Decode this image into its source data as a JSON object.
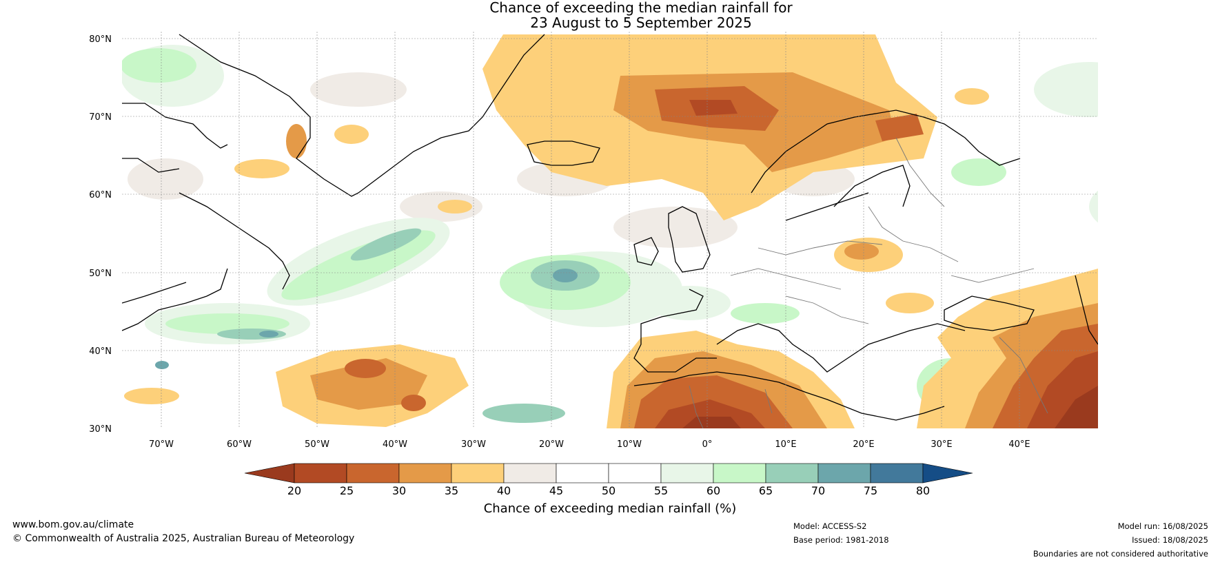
{
  "title": {
    "line1": "Chance of exceeding the median rainfall for",
    "line2": "23 August to 5 September 2025"
  },
  "map": {
    "region": "North Atlantic and Europe",
    "lat_labels": [
      "80°N",
      "70°N",
      "60°N",
      "50°N",
      "40°N",
      "30°N"
    ],
    "lon_labels": [
      "70°W",
      "60°W",
      "50°W",
      "40°W",
      "30°W",
      "20°W",
      "10°W",
      "0°",
      "10°E",
      "20°E",
      "30°E",
      "40°E"
    ],
    "lat_range": [
      30,
      81
    ],
    "lon_range": [
      -75,
      50
    ],
    "gridlines": true
  },
  "colorbar": {
    "label": "Chance of exceeding median rainfall (%)",
    "ticks": [
      "20",
      "25",
      "30",
      "35",
      "40",
      "45",
      "50",
      "55",
      "60",
      "65",
      "70",
      "75",
      "80"
    ],
    "colors": [
      "#9a3a1e",
      "#b24a24",
      "#c9662e",
      "#e49a48",
      "#fdd07a",
      "#f0ebe6",
      "#ffffff",
      "#ffffff",
      "#e8f6e8",
      "#c8f7c8",
      "#98cfb8",
      "#6ca6ab",
      "#42799b",
      "#154d86"
    ],
    "extend": "both"
  },
  "footer": {
    "website": "www.bom.gov.au/climate",
    "copyright": "© Commonwealth of Australia 2025, Australian Bureau of Meteorology",
    "model": "Model: ACCESS-S2",
    "base_period": "Base period: 1981-2018",
    "model_run": "Model run: 16/08/2025",
    "issued": "Issued: 18/08/2025",
    "disclaimer": "Boundaries are not considered authoritative"
  }
}
